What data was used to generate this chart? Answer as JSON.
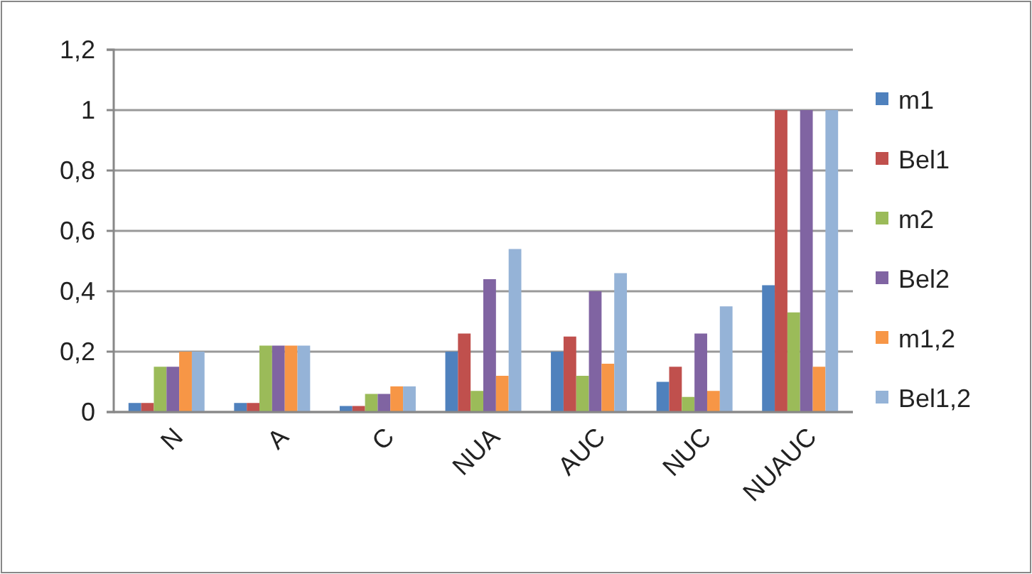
{
  "chart_data": {
    "type": "bar",
    "categories": [
      "N",
      "A",
      "C",
      "NUA",
      "AUC",
      "NUC",
      "NUAUC"
    ],
    "series": [
      {
        "name": "m1",
        "color": "#4f81bd",
        "values": [
          0.03,
          0.03,
          0.02,
          0.2,
          0.2,
          0.1,
          0.42
        ]
      },
      {
        "name": "Bel1",
        "color": "#c0504d",
        "values": [
          0.03,
          0.03,
          0.02,
          0.26,
          0.25,
          0.15,
          1
        ]
      },
      {
        "name": "m2",
        "color": "#9bbb59",
        "values": [
          0.15,
          0.22,
          0.06,
          0.07,
          0.12,
          0.05,
          0.33
        ]
      },
      {
        "name": "Bel2",
        "color": "#8064a2",
        "values": [
          0.15,
          0.22,
          0.06,
          0.44,
          0.4,
          0.26,
          1
        ]
      },
      {
        "name": "m1,2",
        "color": "#f79646",
        "values": [
          0.2,
          0.22,
          0.085,
          0.12,
          0.16,
          0.07,
          0.15
        ]
      },
      {
        "name": "Bel1,2",
        "color": "#95b3d7",
        "values": [
          0.2,
          0.22,
          0.085,
          0.54,
          0.46,
          0.35,
          1
        ]
      }
    ],
    "ylim": [
      0,
      1.2
    ],
    "yticks": [
      0,
      {
        "value": 0.2,
        "label": "0,2"
      },
      {
        "value": 0.4,
        "label": "0,4"
      },
      {
        "value": 0.6,
        "label": "0,6"
      },
      {
        "value": 0.8,
        "label": "0,8"
      },
      1,
      {
        "value": 1.2,
        "label": "1,2"
      }
    ],
    "grid": "y",
    "legend": "right"
  }
}
